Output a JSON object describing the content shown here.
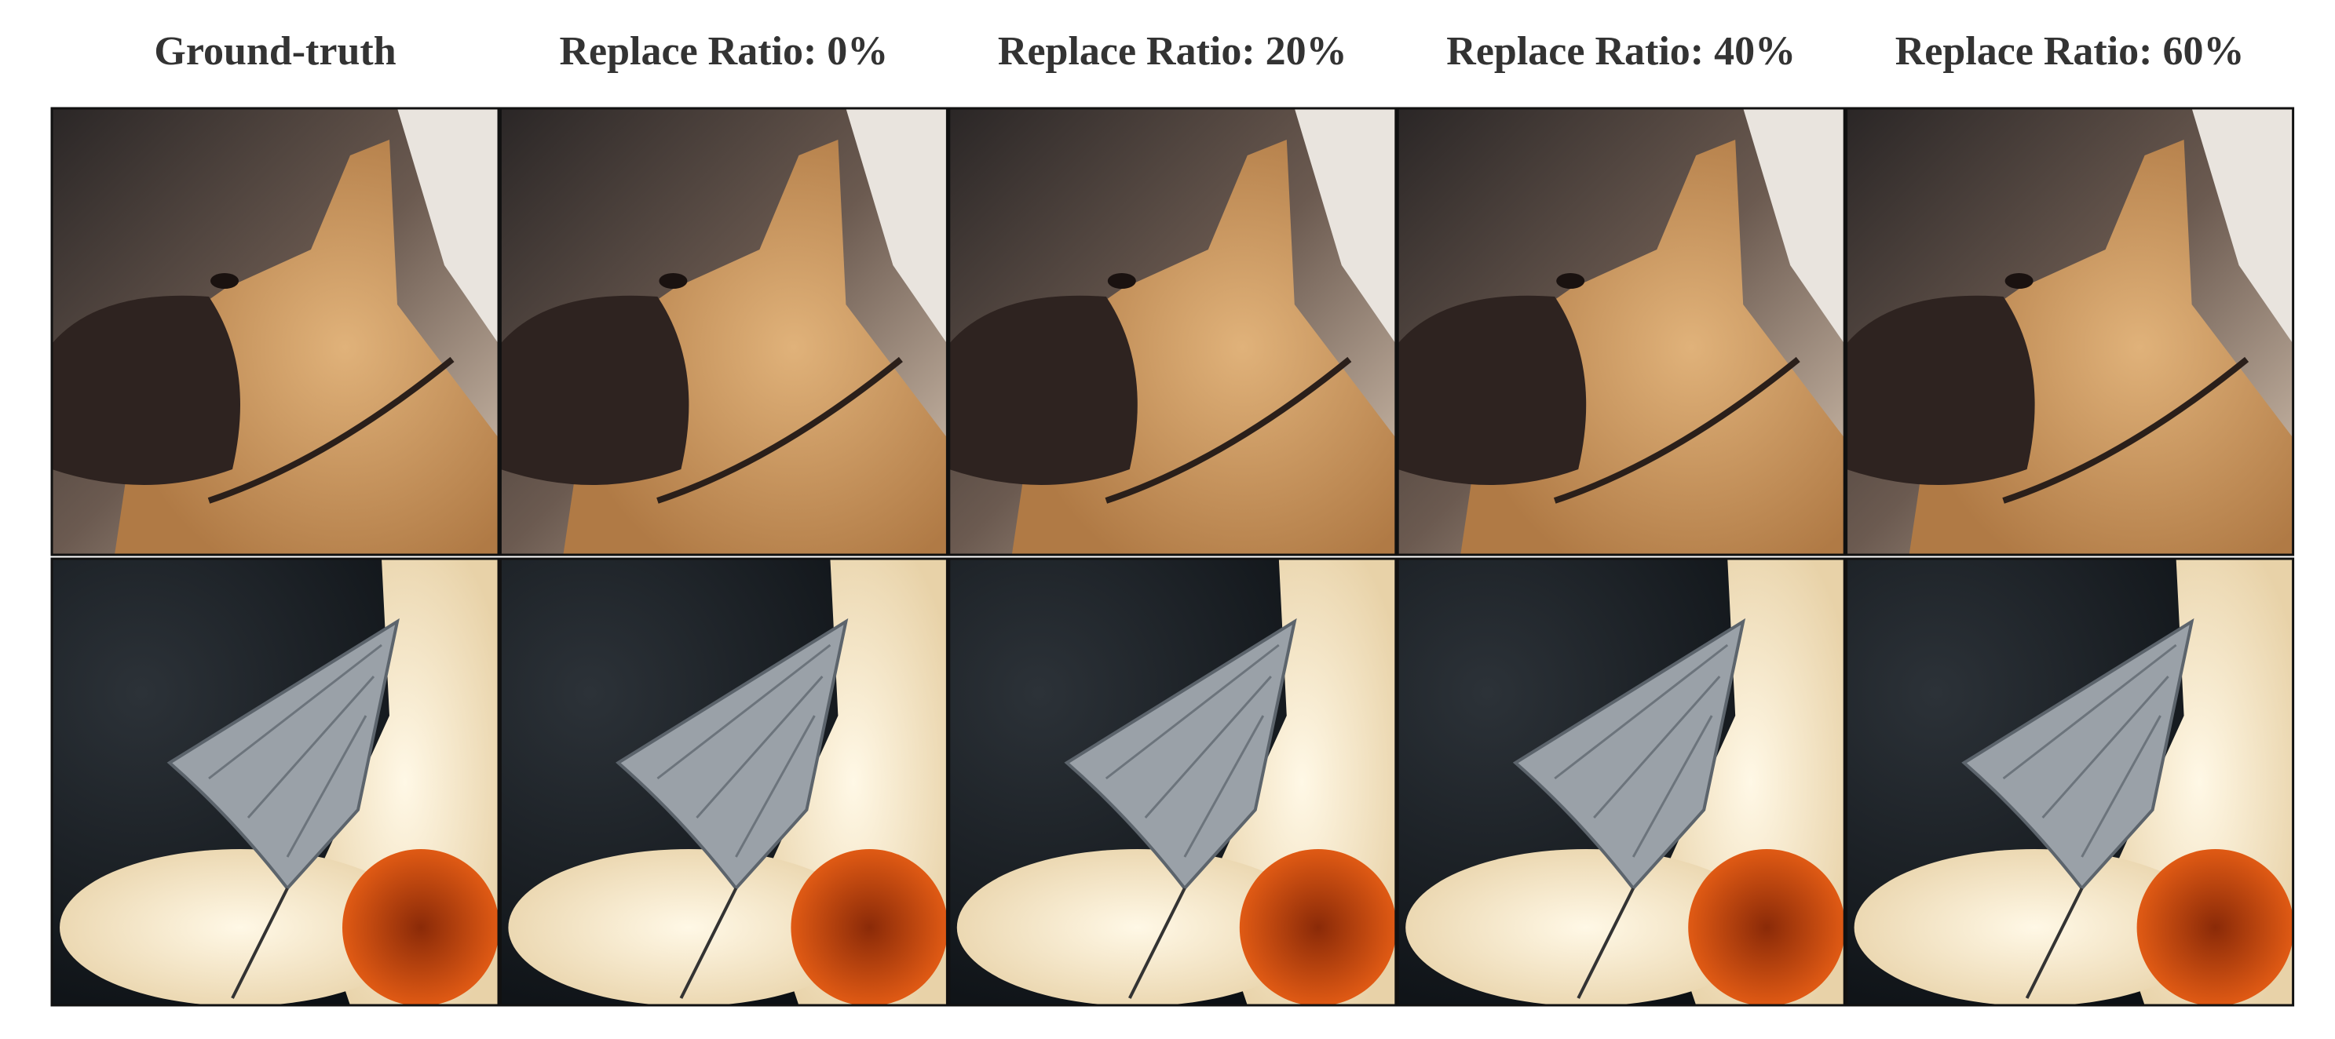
{
  "columns": [
    "Ground-truth",
    "Replace Ratio: 0%",
    "Replace Ratio: 20%",
    "Replace Ratio: 40%",
    "Replace Ratio: 60%"
  ]
}
